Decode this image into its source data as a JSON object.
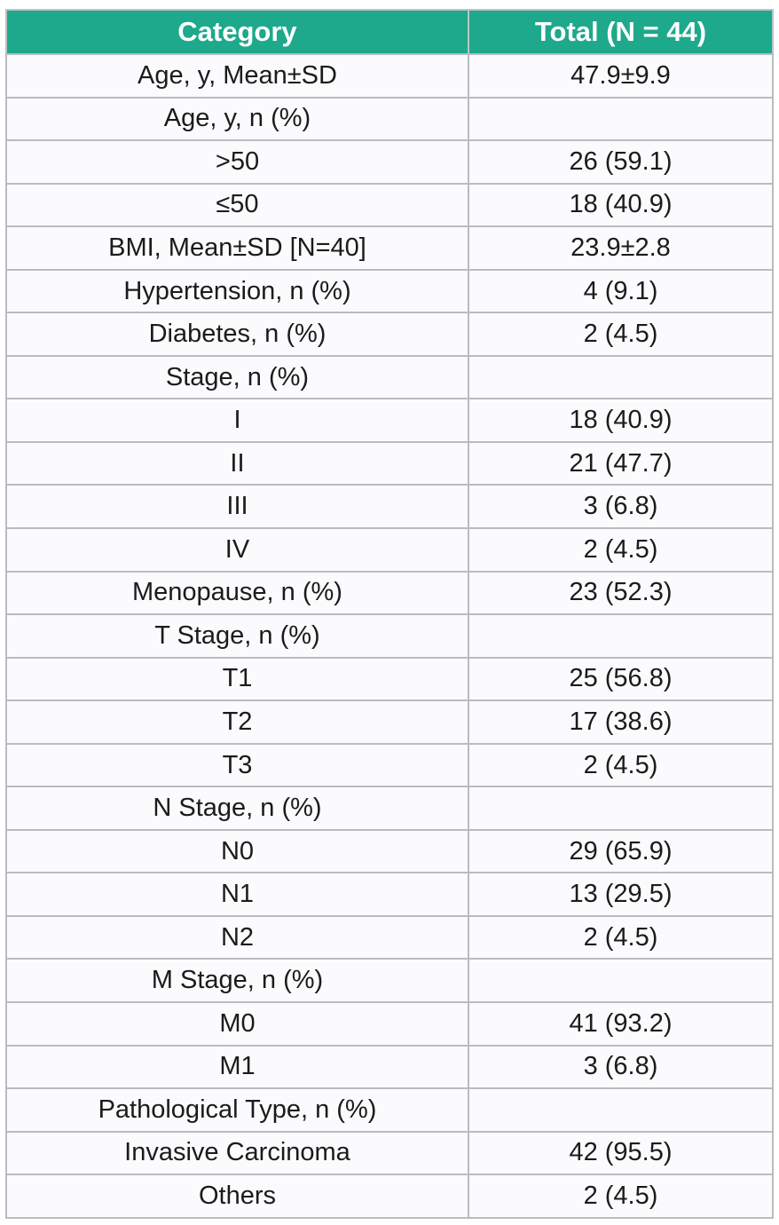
{
  "title": "Patient baseline characteristics table",
  "colors": {
    "header_bg": "#1ea88c",
    "header_text": "#ffffff",
    "row_bg": "#fbfbfd",
    "border": "#b9bcc1",
    "body_text": "#1b1b1b"
  },
  "chart_data": {
    "type": "table",
    "columns": [
      "Category",
      "Total (N = 44)"
    ],
    "rows": [
      [
        "Age, y, Mean±SD",
        "47.9±9.9"
      ],
      [
        "Age, y, n (%)",
        ""
      ],
      [
        ">50",
        "26 (59.1)"
      ],
      [
        "≤50",
        "18 (40.9)"
      ],
      [
        "BMI, Mean±SD [N=40]",
        "23.9±2.8"
      ],
      [
        "Hypertension, n (%)",
        "4 (9.1)"
      ],
      [
        "Diabetes, n (%)",
        "2 (4.5)"
      ],
      [
        "Stage, n (%)",
        ""
      ],
      [
        "I",
        "18 (40.9)"
      ],
      [
        "II",
        "21 (47.7)"
      ],
      [
        "III",
        "3 (6.8)"
      ],
      [
        "IV",
        "2 (4.5)"
      ],
      [
        "Menopause, n (%)",
        "23 (52.3)"
      ],
      [
        "T Stage, n (%)",
        ""
      ],
      [
        "T1",
        "25 (56.8)"
      ],
      [
        "T2",
        "17 (38.6)"
      ],
      [
        "T3",
        "2 (4.5)"
      ],
      [
        "N Stage, n (%)",
        ""
      ],
      [
        "N0",
        "29 (65.9)"
      ],
      [
        "N1",
        "13 (29.5)"
      ],
      [
        "N2",
        "2 (4.5)"
      ],
      [
        "M Stage, n (%)",
        ""
      ],
      [
        "M0",
        "41 (93.2)"
      ],
      [
        "M1",
        "3 (6.8)"
      ],
      [
        "Pathological Type, n (%)",
        ""
      ],
      [
        "Invasive Carcinoma",
        "42 (95.5)"
      ],
      [
        "Others",
        "2 (4.5)"
      ]
    ]
  }
}
